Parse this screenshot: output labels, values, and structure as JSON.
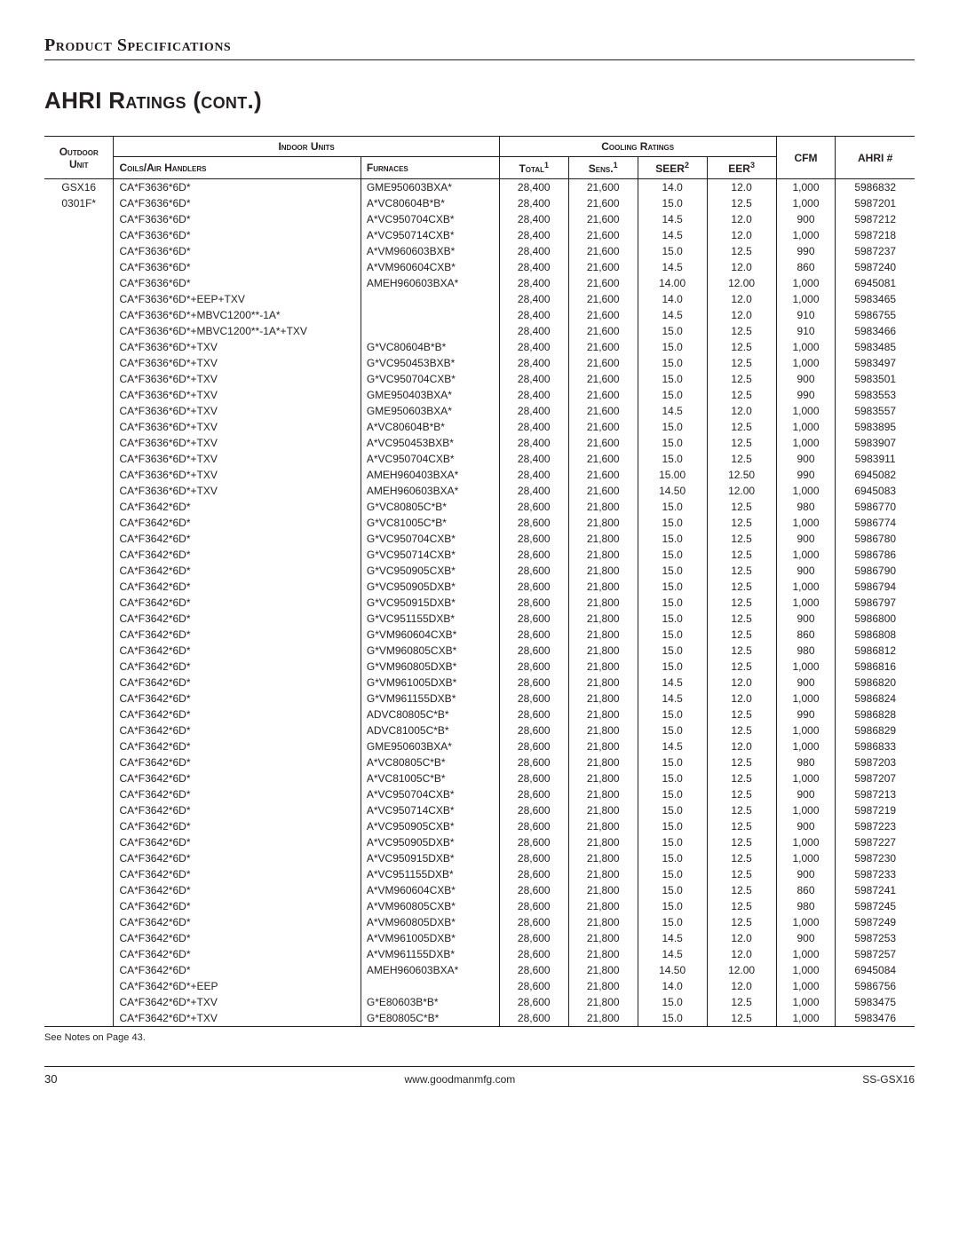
{
  "section_label": "Product Specifications",
  "page_title": "AHRI Ratings (cont.)",
  "headers": {
    "outdoor_unit": "Outdoor Unit",
    "indoor_units": "Indoor Units",
    "coils": "Coils/Air Handlers",
    "furnaces": "Furnaces",
    "cooling_ratings": "Cooling Ratings",
    "total": "Total",
    "sens": "Sens.",
    "seer": "SEER",
    "eer": "EER",
    "cfm": "CFM",
    "ahri": "AHRI #",
    "sup1": "1",
    "sup2": "2",
    "sup3": "3"
  },
  "outdoor": {
    "line1": "GSX16",
    "line2": "0301F*"
  },
  "rows": [
    {
      "c": "CA*F3636*6D*",
      "f": "GME950603BXA*",
      "t": "28,400",
      "s": "21,600",
      "se": "14.0",
      "e": "12.0",
      "cfm": "1,000",
      "a": "5986832"
    },
    {
      "c": "CA*F3636*6D*",
      "f": "A*VC80604B*B*",
      "t": "28,400",
      "s": "21,600",
      "se": "15.0",
      "e": "12.5",
      "cfm": "1,000",
      "a": "5987201"
    },
    {
      "c": "CA*F3636*6D*",
      "f": "A*VC950704CXB*",
      "t": "28,400",
      "s": "21,600",
      "se": "14.5",
      "e": "12.0",
      "cfm": "900",
      "a": "5987212"
    },
    {
      "c": "CA*F3636*6D*",
      "f": "A*VC950714CXB*",
      "t": "28,400",
      "s": "21,600",
      "se": "14.5",
      "e": "12.0",
      "cfm": "1,000",
      "a": "5987218"
    },
    {
      "c": "CA*F3636*6D*",
      "f": "A*VM960603BXB*",
      "t": "28,400",
      "s": "21,600",
      "se": "15.0",
      "e": "12.5",
      "cfm": "990",
      "a": "5987237"
    },
    {
      "c": "CA*F3636*6D*",
      "f": "A*VM960604CXB*",
      "t": "28,400",
      "s": "21,600",
      "se": "14.5",
      "e": "12.0",
      "cfm": "860",
      "a": "5987240"
    },
    {
      "c": "CA*F3636*6D*",
      "f": "AMEH960603BXA*",
      "t": "28,400",
      "s": "21,600",
      "se": "14.00",
      "e": "12.00",
      "cfm": "1,000",
      "a": "6945081"
    },
    {
      "c": "CA*F3636*6D*+EEP+TXV",
      "f": "",
      "t": "28,400",
      "s": "21,600",
      "se": "14.0",
      "e": "12.0",
      "cfm": "1,000",
      "a": "5983465"
    },
    {
      "c": "CA*F3636*6D*+MBVC1200**-1A*",
      "f": "",
      "t": "28,400",
      "s": "21,600",
      "se": "14.5",
      "e": "12.0",
      "cfm": "910",
      "a": "5986755"
    },
    {
      "c": "CA*F3636*6D*+MBVC1200**-1A*+TXV",
      "f": "",
      "t": "28,400",
      "s": "21,600",
      "se": "15.0",
      "e": "12.5",
      "cfm": "910",
      "a": "5983466"
    },
    {
      "c": "CA*F3636*6D*+TXV",
      "f": "G*VC80604B*B*",
      "t": "28,400",
      "s": "21,600",
      "se": "15.0",
      "e": "12.5",
      "cfm": "1,000",
      "a": "5983485"
    },
    {
      "c": "CA*F3636*6D*+TXV",
      "f": "G*VC950453BXB*",
      "t": "28,400",
      "s": "21,600",
      "se": "15.0",
      "e": "12.5",
      "cfm": "1,000",
      "a": "5983497"
    },
    {
      "c": "CA*F3636*6D*+TXV",
      "f": "G*VC950704CXB*",
      "t": "28,400",
      "s": "21,600",
      "se": "15.0",
      "e": "12.5",
      "cfm": "900",
      "a": "5983501"
    },
    {
      "c": "CA*F3636*6D*+TXV",
      "f": "GME950403BXA*",
      "t": "28,400",
      "s": "21,600",
      "se": "15.0",
      "e": "12.5",
      "cfm": "990",
      "a": "5983553"
    },
    {
      "c": "CA*F3636*6D*+TXV",
      "f": "GME950603BXA*",
      "t": "28,400",
      "s": "21,600",
      "se": "14.5",
      "e": "12.0",
      "cfm": "1,000",
      "a": "5983557"
    },
    {
      "c": "CA*F3636*6D*+TXV",
      "f": "A*VC80604B*B*",
      "t": "28,400",
      "s": "21,600",
      "se": "15.0",
      "e": "12.5",
      "cfm": "1,000",
      "a": "5983895"
    },
    {
      "c": "CA*F3636*6D*+TXV",
      "f": "A*VC950453BXB*",
      "t": "28,400",
      "s": "21,600",
      "se": "15.0",
      "e": "12.5",
      "cfm": "1,000",
      "a": "5983907"
    },
    {
      "c": "CA*F3636*6D*+TXV",
      "f": "A*VC950704CXB*",
      "t": "28,400",
      "s": "21,600",
      "se": "15.0",
      "e": "12.5",
      "cfm": "900",
      "a": "5983911"
    },
    {
      "c": "CA*F3636*6D*+TXV",
      "f": "AMEH960403BXA*",
      "t": "28,400",
      "s": "21,600",
      "se": "15.00",
      "e": "12.50",
      "cfm": "990",
      "a": "6945082"
    },
    {
      "c": "CA*F3636*6D*+TXV",
      "f": "AMEH960603BXA*",
      "t": "28,400",
      "s": "21,600",
      "se": "14.50",
      "e": "12.00",
      "cfm": "1,000",
      "a": "6945083"
    },
    {
      "c": "CA*F3642*6D*",
      "f": "G*VC80805C*B*",
      "t": "28,600",
      "s": "21,800",
      "se": "15.0",
      "e": "12.5",
      "cfm": "980",
      "a": "5986770"
    },
    {
      "c": "CA*F3642*6D*",
      "f": "G*VC81005C*B*",
      "t": "28,600",
      "s": "21,800",
      "se": "15.0",
      "e": "12.5",
      "cfm": "1,000",
      "a": "5986774"
    },
    {
      "c": "CA*F3642*6D*",
      "f": "G*VC950704CXB*",
      "t": "28,600",
      "s": "21,800",
      "se": "15.0",
      "e": "12.5",
      "cfm": "900",
      "a": "5986780"
    },
    {
      "c": "CA*F3642*6D*",
      "f": "G*VC950714CXB*",
      "t": "28,600",
      "s": "21,800",
      "se": "15.0",
      "e": "12.5",
      "cfm": "1,000",
      "a": "5986786"
    },
    {
      "c": "CA*F3642*6D*",
      "f": "G*VC950905CXB*",
      "t": "28,600",
      "s": "21,800",
      "se": "15.0",
      "e": "12.5",
      "cfm": "900",
      "a": "5986790"
    },
    {
      "c": "CA*F3642*6D*",
      "f": "G*VC950905DXB*",
      "t": "28,600",
      "s": "21,800",
      "se": "15.0",
      "e": "12.5",
      "cfm": "1,000",
      "a": "5986794"
    },
    {
      "c": "CA*F3642*6D*",
      "f": "G*VC950915DXB*",
      "t": "28,600",
      "s": "21,800",
      "se": "15.0",
      "e": "12.5",
      "cfm": "1,000",
      "a": "5986797"
    },
    {
      "c": "CA*F3642*6D*",
      "f": "G*VC951155DXB*",
      "t": "28,600",
      "s": "21,800",
      "se": "15.0",
      "e": "12.5",
      "cfm": "900",
      "a": "5986800"
    },
    {
      "c": "CA*F3642*6D*",
      "f": "G*VM960604CXB*",
      "t": "28,600",
      "s": "21,800",
      "se": "15.0",
      "e": "12.5",
      "cfm": "860",
      "a": "5986808"
    },
    {
      "c": "CA*F3642*6D*",
      "f": "G*VM960805CXB*",
      "t": "28,600",
      "s": "21,800",
      "se": "15.0",
      "e": "12.5",
      "cfm": "980",
      "a": "5986812"
    },
    {
      "c": "CA*F3642*6D*",
      "f": "G*VM960805DXB*",
      "t": "28,600",
      "s": "21,800",
      "se": "15.0",
      "e": "12.5",
      "cfm": "1,000",
      "a": "5986816"
    },
    {
      "c": "CA*F3642*6D*",
      "f": "G*VM961005DXB*",
      "t": "28,600",
      "s": "21,800",
      "se": "14.5",
      "e": "12.0",
      "cfm": "900",
      "a": "5986820"
    },
    {
      "c": "CA*F3642*6D*",
      "f": "G*VM961155DXB*",
      "t": "28,600",
      "s": "21,800",
      "se": "14.5",
      "e": "12.0",
      "cfm": "1,000",
      "a": "5986824"
    },
    {
      "c": "CA*F3642*6D*",
      "f": "ADVC80805C*B*",
      "t": "28,600",
      "s": "21,800",
      "se": "15.0",
      "e": "12.5",
      "cfm": "990",
      "a": "5986828"
    },
    {
      "c": "CA*F3642*6D*",
      "f": "ADVC81005C*B*",
      "t": "28,600",
      "s": "21,800",
      "se": "15.0",
      "e": "12.5",
      "cfm": "1,000",
      "a": "5986829"
    },
    {
      "c": "CA*F3642*6D*",
      "f": "GME950603BXA*",
      "t": "28,600",
      "s": "21,800",
      "se": "14.5",
      "e": "12.0",
      "cfm": "1,000",
      "a": "5986833"
    },
    {
      "c": "CA*F3642*6D*",
      "f": "A*VC80805C*B*",
      "t": "28,600",
      "s": "21,800",
      "se": "15.0",
      "e": "12.5",
      "cfm": "980",
      "a": "5987203"
    },
    {
      "c": "CA*F3642*6D*",
      "f": "A*VC81005C*B*",
      "t": "28,600",
      "s": "21,800",
      "se": "15.0",
      "e": "12.5",
      "cfm": "1,000",
      "a": "5987207"
    },
    {
      "c": "CA*F3642*6D*",
      "f": "A*VC950704CXB*",
      "t": "28,600",
      "s": "21,800",
      "se": "15.0",
      "e": "12.5",
      "cfm": "900",
      "a": "5987213"
    },
    {
      "c": "CA*F3642*6D*",
      "f": "A*VC950714CXB*",
      "t": "28,600",
      "s": "21,800",
      "se": "15.0",
      "e": "12.5",
      "cfm": "1,000",
      "a": "5987219"
    },
    {
      "c": "CA*F3642*6D*",
      "f": "A*VC950905CXB*",
      "t": "28,600",
      "s": "21,800",
      "se": "15.0",
      "e": "12.5",
      "cfm": "900",
      "a": "5987223"
    },
    {
      "c": "CA*F3642*6D*",
      "f": "A*VC950905DXB*",
      "t": "28,600",
      "s": "21,800",
      "se": "15.0",
      "e": "12.5",
      "cfm": "1,000",
      "a": "5987227"
    },
    {
      "c": "CA*F3642*6D*",
      "f": "A*VC950915DXB*",
      "t": "28,600",
      "s": "21,800",
      "se": "15.0",
      "e": "12.5",
      "cfm": "1,000",
      "a": "5987230"
    },
    {
      "c": "CA*F3642*6D*",
      "f": "A*VC951155DXB*",
      "t": "28,600",
      "s": "21,800",
      "se": "15.0",
      "e": "12.5",
      "cfm": "900",
      "a": "5987233"
    },
    {
      "c": "CA*F3642*6D*",
      "f": "A*VM960604CXB*",
      "t": "28,600",
      "s": "21,800",
      "se": "15.0",
      "e": "12.5",
      "cfm": "860",
      "a": "5987241"
    },
    {
      "c": "CA*F3642*6D*",
      "f": "A*VM960805CXB*",
      "t": "28,600",
      "s": "21,800",
      "se": "15.0",
      "e": "12.5",
      "cfm": "980",
      "a": "5987245"
    },
    {
      "c": "CA*F3642*6D*",
      "f": "A*VM960805DXB*",
      "t": "28,600",
      "s": "21,800",
      "se": "15.0",
      "e": "12.5",
      "cfm": "1,000",
      "a": "5987249"
    },
    {
      "c": "CA*F3642*6D*",
      "f": "A*VM961005DXB*",
      "t": "28,600",
      "s": "21,800",
      "se": "14.5",
      "e": "12.0",
      "cfm": "900",
      "a": "5987253"
    },
    {
      "c": "CA*F3642*6D*",
      "f": "A*VM961155DXB*",
      "t": "28,600",
      "s": "21,800",
      "se": "14.5",
      "e": "12.0",
      "cfm": "1,000",
      "a": "5987257"
    },
    {
      "c": "CA*F3642*6D*",
      "f": "AMEH960603BXA*",
      "t": "28,600",
      "s": "21,800",
      "se": "14.50",
      "e": "12.00",
      "cfm": "1,000",
      "a": "6945084"
    },
    {
      "c": "CA*F3642*6D*+EEP",
      "f": "",
      "t": "28,600",
      "s": "21,800",
      "se": "14.0",
      "e": "12.0",
      "cfm": "1,000",
      "a": "5986756"
    },
    {
      "c": "CA*F3642*6D*+TXV",
      "f": "G*E80603B*B*",
      "t": "28,600",
      "s": "21,800",
      "se": "15.0",
      "e": "12.5",
      "cfm": "1,000",
      "a": "5983475"
    },
    {
      "c": "CA*F3642*6D*+TXV",
      "f": "G*E80805C*B*",
      "t": "28,600",
      "s": "21,800",
      "se": "15.0",
      "e": "12.5",
      "cfm": "1,000",
      "a": "5983476"
    }
  ],
  "note": "See Notes on Page 43.",
  "footer": {
    "page": "30",
    "url": "www.goodmanmfg.com",
    "code": "SS-GSX16"
  }
}
